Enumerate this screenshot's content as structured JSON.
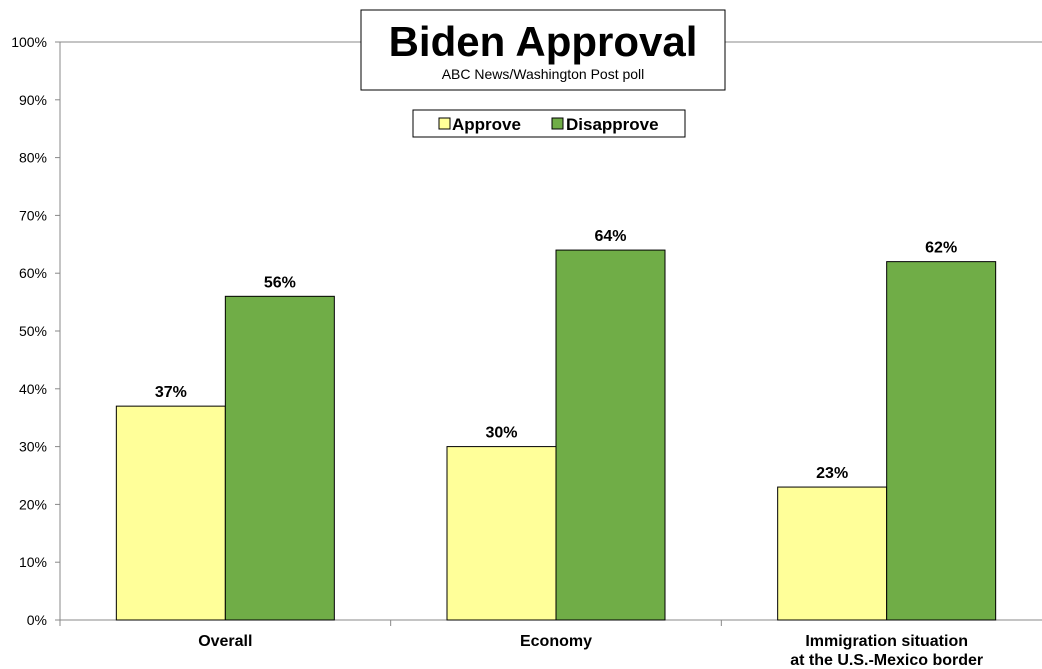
{
  "chart_data": {
    "type": "bar",
    "title": "Biden Approval",
    "subtitle": "ABC News/Washington Post poll",
    "categories": [
      "Overall",
      "Economy",
      "Immigration situation at the U.S.-Mexico border"
    ],
    "category_lines": [
      [
        "Overall"
      ],
      [
        "Economy"
      ],
      [
        "Immigration situation",
        "at the U.S.-Mexico border"
      ]
    ],
    "series": [
      {
        "name": "Approve",
        "values": [
          37,
          30,
          23
        ],
        "color": "#ffff99"
      },
      {
        "name": "Disapprove",
        "values": [
          56,
          64,
          62
        ],
        "color": "#70ad47"
      }
    ],
    "ylim": [
      0,
      100
    ],
    "yticks": [
      0,
      10,
      20,
      30,
      40,
      50,
      60,
      70,
      80,
      90,
      100
    ],
    "value_suffix": "%",
    "legend_position": "top-center",
    "grid": false
  }
}
